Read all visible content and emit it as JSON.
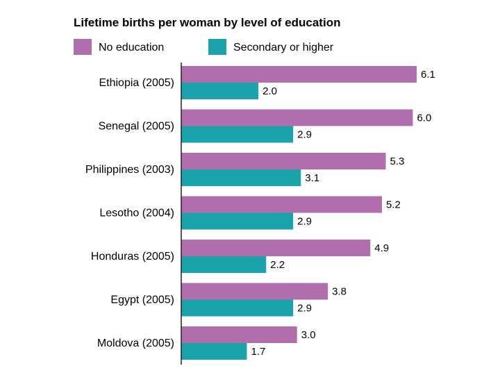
{
  "chart_data": {
    "type": "bar",
    "orientation": "horizontal",
    "title": "Lifetime births per woman by level of education",
    "xlabel": "",
    "ylabel": "",
    "xlim": [
      0,
      6.1
    ],
    "grid": false,
    "legend_position": "top-left",
    "categories": [
      "Ethiopia (2005)",
      "Senegal (2005)",
      "Philippines (2003)",
      "Lesotho (2004)",
      "Honduras (2005)",
      "Egypt (2005)",
      "Moldova (2005)"
    ],
    "series": [
      {
        "name": "No education",
        "color": "#b06eac",
        "values": [
          6.1,
          6.0,
          5.3,
          5.2,
          4.9,
          3.8,
          3.0
        ]
      },
      {
        "name": "Secondary or higher",
        "color": "#1ba3ac",
        "values": [
          2.0,
          2.9,
          3.1,
          2.9,
          2.2,
          2.9,
          1.7
        ]
      }
    ]
  }
}
